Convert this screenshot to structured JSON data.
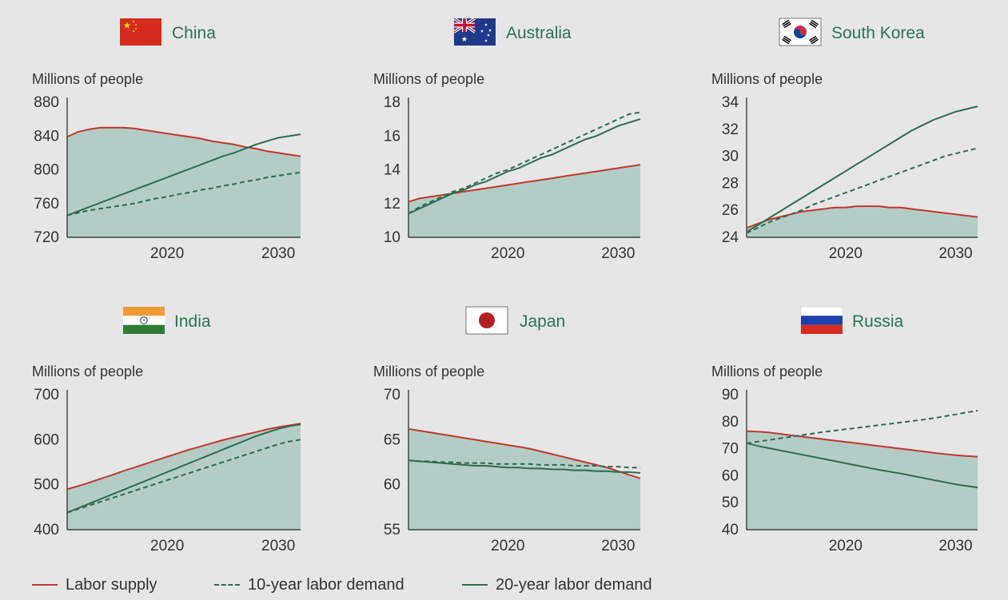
{
  "colors": {
    "labor_supply": "#c0392b",
    "demand": "#2e6b4f",
    "fill": "#b3cdc6",
    "title": "#2d7353",
    "text": "#333333"
  },
  "legend": [
    {
      "label": "Labor supply",
      "style": "solid",
      "color": "#c0392b"
    },
    {
      "label": "10-year labor demand",
      "style": "dashed",
      "color": "#2e6b4f"
    },
    {
      "label": "20-year labor demand",
      "style": "solid",
      "color": "#2e6b4f"
    }
  ],
  "chart_data": [
    {
      "type": "line",
      "title": "China",
      "flag": "china-flag-icon",
      "ylabel": "Millions of people",
      "xlim": [
        2011,
        2032
      ],
      "ylim": [
        720,
        880
      ],
      "yticks": [
        "720",
        "760",
        "800",
        "840",
        "880"
      ],
      "xticks": [
        "2020",
        "2030"
      ],
      "x": [
        2011,
        2012,
        2013,
        2014,
        2015,
        2016,
        2017,
        2018,
        2019,
        2020,
        2021,
        2022,
        2023,
        2024,
        2025,
        2026,
        2027,
        2028,
        2029,
        2030,
        2031,
        2032
      ],
      "series": [
        {
          "name": "Labor supply",
          "values": [
            839,
            845,
            848,
            850,
            850,
            850,
            849,
            847,
            845,
            843,
            841,
            839,
            837,
            834,
            832,
            830,
            827,
            825,
            822,
            820,
            818,
            816
          ]
        },
        {
          "name": "10-year labor demand",
          "values": [
            746,
            749,
            752,
            754,
            756,
            758,
            760,
            763,
            766,
            768,
            771,
            773,
            776,
            778,
            781,
            783,
            786,
            788,
            791,
            793,
            795,
            797
          ]
        },
        {
          "name": "20-year labor demand",
          "values": [
            746,
            751,
            756,
            761,
            766,
            771,
            776,
            781,
            786,
            791,
            796,
            801,
            806,
            811,
            816,
            820,
            825,
            830,
            834,
            838,
            840,
            842
          ]
        }
      ]
    },
    {
      "type": "line",
      "title": "Australia",
      "flag": "australia-flag-icon",
      "ylabel": "Millions of people",
      "xlim": [
        2011,
        2032
      ],
      "ylim": [
        10,
        18
      ],
      "yticks": [
        "10",
        "12",
        "14",
        "16",
        "18"
      ],
      "xticks": [
        "2020",
        "2030"
      ],
      "x": [
        2011,
        2012,
        2013,
        2014,
        2015,
        2016,
        2017,
        2018,
        2019,
        2020,
        2021,
        2022,
        2023,
        2024,
        2025,
        2026,
        2027,
        2028,
        2029,
        2030,
        2031,
        2032
      ],
      "series": [
        {
          "name": "Labor supply",
          "values": [
            12.1,
            12.3,
            12.4,
            12.5,
            12.6,
            12.7,
            12.8,
            12.9,
            13.0,
            13.1,
            13.2,
            13.3,
            13.4,
            13.5,
            13.6,
            13.7,
            13.8,
            13.9,
            14.0,
            14.1,
            14.2,
            14.3
          ]
        },
        {
          "name": "10-year labor demand",
          "values": [
            11.4,
            11.8,
            12.1,
            12.4,
            12.7,
            12.9,
            13.2,
            13.5,
            13.8,
            14.0,
            14.3,
            14.6,
            14.9,
            15.2,
            15.5,
            15.8,
            16.1,
            16.4,
            16.7,
            17.0,
            17.3,
            17.4
          ]
        },
        {
          "name": "20-year labor demand",
          "values": [
            11.4,
            11.7,
            12.0,
            12.3,
            12.6,
            12.8,
            13.1,
            13.3,
            13.6,
            13.9,
            14.1,
            14.4,
            14.7,
            14.9,
            15.2,
            15.5,
            15.8,
            16.0,
            16.3,
            16.6,
            16.8,
            17.0
          ]
        }
      ]
    },
    {
      "type": "line",
      "title": "South Korea",
      "flag": "south-korea-flag-icon",
      "ylabel": "Millions of people",
      "xlim": [
        2011,
        2032
      ],
      "ylim": [
        24,
        34
      ],
      "yticks": [
        "24",
        "26",
        "28",
        "30",
        "32",
        "34"
      ],
      "xticks": [
        "2020",
        "2030"
      ],
      "x": [
        2011,
        2012,
        2013,
        2014,
        2015,
        2016,
        2017,
        2018,
        2019,
        2020,
        2021,
        2022,
        2023,
        2024,
        2025,
        2026,
        2027,
        2028,
        2029,
        2030,
        2031,
        2032
      ],
      "series": [
        {
          "name": "Labor supply",
          "values": [
            24.7,
            25.0,
            25.3,
            25.5,
            25.7,
            25.9,
            26.0,
            26.1,
            26.2,
            26.2,
            26.3,
            26.3,
            26.3,
            26.2,
            26.2,
            26.1,
            26.0,
            25.9,
            25.8,
            25.7,
            25.6,
            25.5
          ]
        },
        {
          "name": "10-year labor demand",
          "values": [
            24.3,
            24.7,
            25.1,
            25.4,
            25.7,
            26.0,
            26.4,
            26.7,
            27.0,
            27.3,
            27.6,
            27.9,
            28.2,
            28.5,
            28.8,
            29.1,
            29.4,
            29.7,
            30.0,
            30.2,
            30.4,
            30.6
          ]
        },
        {
          "name": "20-year labor demand",
          "values": [
            24.4,
            24.9,
            25.4,
            25.9,
            26.4,
            26.9,
            27.4,
            27.9,
            28.4,
            28.9,
            29.4,
            29.9,
            30.4,
            30.9,
            31.4,
            31.9,
            32.3,
            32.7,
            33.0,
            33.3,
            33.5,
            33.7
          ]
        }
      ]
    },
    {
      "type": "line",
      "title": "India",
      "flag": "india-flag-icon",
      "ylabel": "Millions of people",
      "xlim": [
        2011,
        2032
      ],
      "ylim": [
        400,
        700
      ],
      "yticks": [
        "400",
        "500",
        "600",
        "700"
      ],
      "xticks": [
        "2020",
        "2030"
      ],
      "x": [
        2011,
        2012,
        2013,
        2014,
        2015,
        2016,
        2017,
        2018,
        2019,
        2020,
        2021,
        2022,
        2023,
        2024,
        2025,
        2026,
        2027,
        2028,
        2029,
        2030,
        2031,
        2032
      ],
      "series": [
        {
          "name": "Labor supply",
          "values": [
            490,
            497,
            505,
            513,
            521,
            530,
            538,
            546,
            554,
            562,
            570,
            578,
            585,
            592,
            599,
            605,
            611,
            617,
            623,
            628,
            632,
            636
          ]
        },
        {
          "name": "10-year labor demand",
          "values": [
            438,
            446,
            454,
            462,
            470,
            478,
            486,
            494,
            502,
            510,
            518,
            526,
            534,
            542,
            550,
            558,
            566,
            574,
            582,
            590,
            596,
            600
          ]
        },
        {
          "name": "20-year labor demand",
          "values": [
            438,
            448,
            458,
            468,
            478,
            488,
            498,
            508,
            518,
            528,
            538,
            548,
            558,
            568,
            578,
            588,
            598,
            608,
            616,
            624,
            630,
            634
          ]
        }
      ]
    },
    {
      "type": "line",
      "title": "Japan",
      "flag": "japan-flag-icon",
      "ylabel": "Millions of people",
      "xlim": [
        2011,
        2032
      ],
      "ylim": [
        55,
        70
      ],
      "yticks": [
        "55",
        "60",
        "65",
        "70"
      ],
      "xticks": [
        "2020",
        "2030"
      ],
      "x": [
        2011,
        2012,
        2013,
        2014,
        2015,
        2016,
        2017,
        2018,
        2019,
        2020,
        2021,
        2022,
        2023,
        2024,
        2025,
        2026,
        2027,
        2028,
        2029,
        2030,
        2031,
        2032
      ],
      "series": [
        {
          "name": "Labor supply",
          "values": [
            66.2,
            66.0,
            65.8,
            65.6,
            65.4,
            65.2,
            65.0,
            64.8,
            64.6,
            64.4,
            64.2,
            64.0,
            63.7,
            63.4,
            63.1,
            62.8,
            62.5,
            62.2,
            61.9,
            61.5,
            61.1,
            60.7
          ]
        },
        {
          "name": "10-year labor demand",
          "values": [
            62.7,
            62.6,
            62.6,
            62.5,
            62.5,
            62.4,
            62.4,
            62.4,
            62.3,
            62.3,
            62.3,
            62.3,
            62.2,
            62.2,
            62.2,
            62.1,
            62.1,
            62.1,
            62.0,
            62.0,
            61.9,
            61.9
          ]
        },
        {
          "name": "20-year labor demand",
          "values": [
            62.7,
            62.6,
            62.5,
            62.4,
            62.3,
            62.2,
            62.1,
            62.1,
            62.0,
            61.9,
            61.9,
            61.8,
            61.8,
            61.7,
            61.7,
            61.6,
            61.6,
            61.5,
            61.5,
            61.4,
            61.4,
            61.3
          ]
        }
      ]
    },
    {
      "type": "line",
      "title": "Russia",
      "flag": "russia-flag-icon",
      "ylabel": "Millions of people",
      "xlim": [
        2011,
        2032
      ],
      "ylim": [
        40,
        90
      ],
      "yticks": [
        "40",
        "50",
        "60",
        "70",
        "80",
        "90"
      ],
      "xticks": [
        "2020",
        "2030"
      ],
      "x": [
        2011,
        2012,
        2013,
        2014,
        2015,
        2016,
        2017,
        2018,
        2019,
        2020,
        2021,
        2022,
        2023,
        2024,
        2025,
        2026,
        2027,
        2028,
        2029,
        2030,
        2031,
        2032
      ],
      "series": [
        {
          "name": "Labor supply",
          "values": [
            76.5,
            76.3,
            76.0,
            75.5,
            75.0,
            74.5,
            74.0,
            73.5,
            73.0,
            72.5,
            72.0,
            71.5,
            71.0,
            70.5,
            70.0,
            69.5,
            69.0,
            68.5,
            68.0,
            67.6,
            67.3,
            67.0
          ]
        },
        {
          "name": "10-year labor demand",
          "values": [
            72.0,
            72.6,
            73.2,
            73.8,
            74.4,
            75.0,
            75.6,
            76.2,
            76.7,
            77.2,
            77.7,
            78.2,
            78.7,
            79.2,
            79.7,
            80.2,
            80.7,
            81.3,
            82.0,
            82.7,
            83.4,
            84.1
          ]
        },
        {
          "name": "20-year labor demand",
          "values": [
            72.0,
            71.0,
            70.2,
            69.4,
            68.6,
            67.8,
            67.0,
            66.2,
            65.4,
            64.6,
            63.8,
            63.0,
            62.2,
            61.5,
            60.8,
            60.0,
            59.2,
            58.4,
            57.6,
            56.8,
            56.2,
            55.6
          ]
        }
      ]
    }
  ]
}
